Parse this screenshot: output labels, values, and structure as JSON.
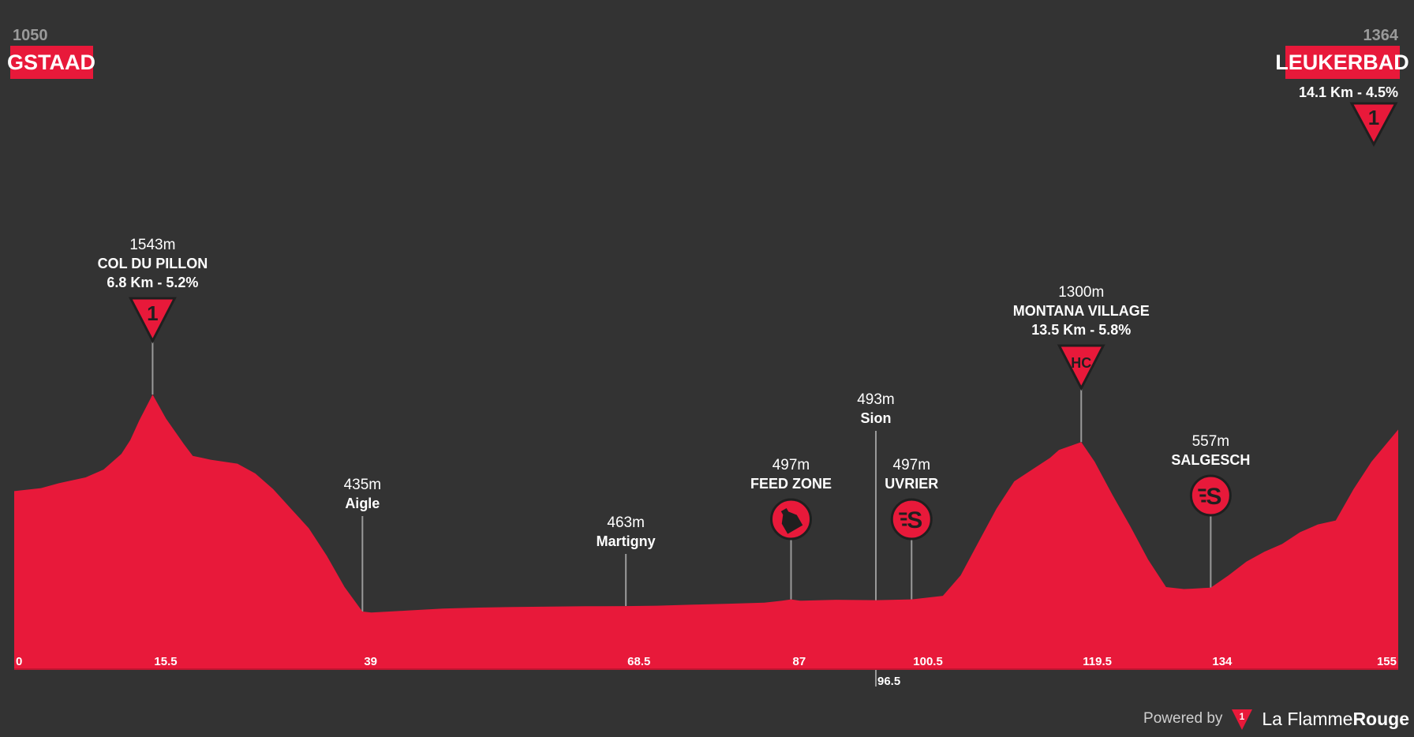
{
  "colors": {
    "background": "#333333",
    "profile": "#e8193a",
    "text": "#ffffff",
    "muted": "#9a9a9a",
    "line": "#9a9a9a"
  },
  "start": {
    "altitude": "1050",
    "name": "GSTAAD"
  },
  "finish": {
    "altitude": "1364",
    "name": "LEUKERBAD",
    "climb": "14.1 Km - 4.5%",
    "category": "1"
  },
  "credit": {
    "powered_by": "Powered by",
    "brand_regular": "La Flamme",
    "brand_bold": "Rouge",
    "logo_digit": "1"
  },
  "chart_data": {
    "type": "area",
    "title": "",
    "xlabel": "",
    "ylabel": "",
    "xlim": [
      0,
      155
    ],
    "ylim": [
      350,
      1700
    ],
    "profile": {
      "x": [
        0,
        3,
        5,
        8,
        10,
        12,
        13,
        14,
        15.5,
        17,
        19,
        20,
        22,
        25,
        27,
        29,
        31,
        33,
        35,
        37,
        39,
        40,
        44,
        48,
        52,
        56,
        60,
        64,
        68.5,
        72,
        76,
        80,
        84,
        86,
        87,
        88,
        92,
        96.5,
        100.5,
        104,
        106,
        108,
        110,
        112,
        114,
        116,
        117,
        119.5,
        121,
        123,
        125,
        127,
        129,
        131,
        132,
        134,
        136,
        138,
        140,
        142,
        144,
        146,
        148,
        150,
        152,
        155
      ],
      "elevation": [
        1050,
        1065,
        1090,
        1120,
        1160,
        1240,
        1310,
        1410,
        1543,
        1420,
        1290,
        1230,
        1210,
        1190,
        1140,
        1060,
        960,
        860,
        720,
        560,
        435,
        430,
        440,
        450,
        455,
        458,
        460,
        462,
        463,
        465,
        470,
        475,
        480,
        490,
        497,
        490,
        495,
        493,
        497,
        515,
        620,
        790,
        960,
        1100,
        1160,
        1220,
        1260,
        1300,
        1200,
        1030,
        870,
        700,
        560,
        550,
        552,
        557,
        620,
        690,
        740,
        780,
        840,
        880,
        900,
        1060,
        1200,
        1364
      ]
    },
    "points": [
      {
        "km": 15.5,
        "label": "15.5",
        "alt": "1543m",
        "name": "COL DU PILLON",
        "climb": "6.8 Km - 5.2%",
        "kind": "climb",
        "category": "1"
      },
      {
        "km": 39,
        "label": "39",
        "alt": "435m",
        "name": "Aigle",
        "kind": "town"
      },
      {
        "km": 68.5,
        "label": "68.5",
        "alt": "463m",
        "name": "Martigny",
        "kind": "town"
      },
      {
        "km": 87,
        "label": "87",
        "alt": "497m",
        "name": "FEED ZONE",
        "kind": "feed"
      },
      {
        "km": 96.5,
        "label": "96.5",
        "alt": "493m",
        "name": "Sion",
        "kind": "town"
      },
      {
        "km": 100.5,
        "label": "100.5",
        "alt": "497m",
        "name": "UVRIER",
        "kind": "sprint"
      },
      {
        "km": 119.5,
        "label": "119.5",
        "alt": "1300m",
        "name": "MONTANA VILLAGE",
        "climb": "13.5 Km - 5.8%",
        "kind": "climb",
        "category": "HC"
      },
      {
        "km": 134,
        "label": "134",
        "alt": "557m",
        "name": "SALGESCH",
        "kind": "sprint"
      }
    ],
    "ticks": [
      {
        "km": 0,
        "label": "0"
      },
      {
        "km": 15.5,
        "label": "15.5"
      },
      {
        "km": 39,
        "label": "39"
      },
      {
        "km": 68.5,
        "label": "68.5"
      },
      {
        "km": 87,
        "label": "87"
      },
      {
        "km": 96.5,
        "label": "96.5"
      },
      {
        "km": 100.5,
        "label": "100.5"
      },
      {
        "km": 119.5,
        "label": "119.5"
      },
      {
        "km": 134,
        "label": "134"
      },
      {
        "km": 155,
        "label": "155"
      }
    ]
  }
}
